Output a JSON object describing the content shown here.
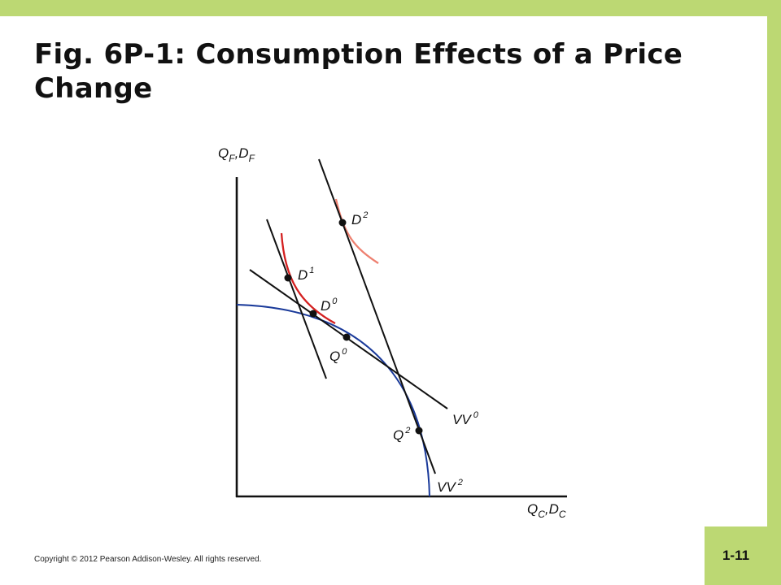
{
  "slide": {
    "title": "Fig. 6P-1: Consumption Effects of a Price Change",
    "copyright": "Copyright © 2012 Pearson Addison-Wesley. All rights reserved.",
    "slide_number": "1-11",
    "colors": {
      "frame": "#bcd873",
      "slide_number_box": "#bcd873",
      "ppf_curve": "#1a3a9a",
      "indifference_d1": "#d42020",
      "indifference_d2": "#ee8070",
      "lines": "#111111"
    }
  },
  "diagram": {
    "y_axis_label": {
      "main": "Q",
      "sub1": "F",
      "sep": ",D",
      "sub2": "F"
    },
    "x_axis_label": {
      "main": "Q",
      "sub1": "C",
      "sep": ",D",
      "sub2": "C"
    },
    "points": {
      "D2": {
        "letter": "D",
        "sup": "2"
      },
      "D1": {
        "letter": "D",
        "sup": "1"
      },
      "D0": {
        "letter": "D",
        "sup": "0"
      },
      "Q0": {
        "letter": "Q",
        "sup": "0"
      },
      "Q2": {
        "letter": "Q",
        "sup": "2"
      }
    },
    "lines": {
      "VV0": {
        "letter": "VV",
        "sup": "0"
      },
      "VV2": {
        "letter": "VV",
        "sup": "2"
      }
    }
  }
}
